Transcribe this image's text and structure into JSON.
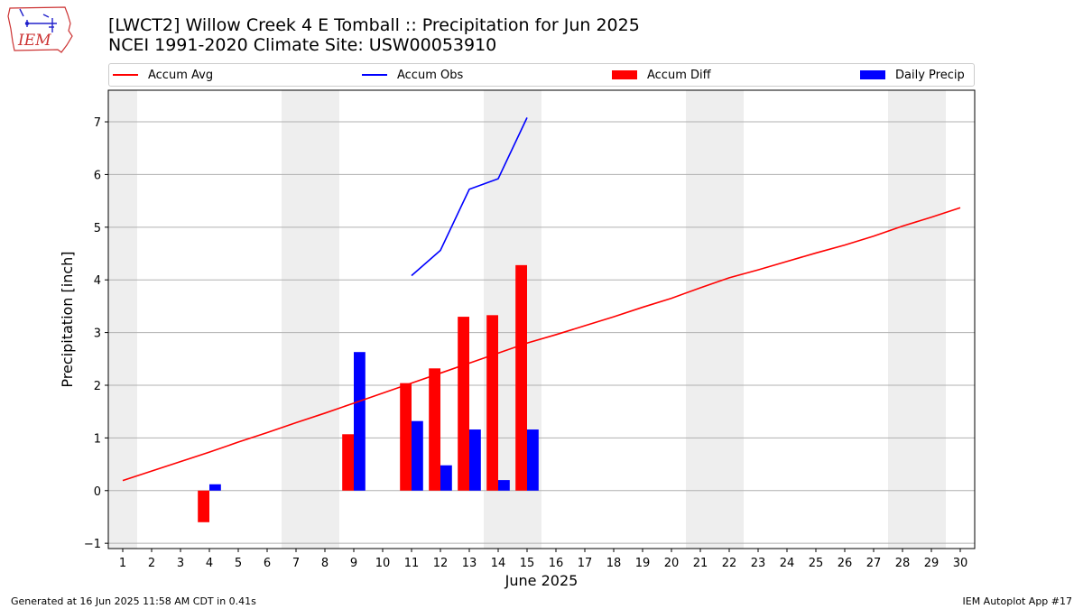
{
  "header": {
    "title_line1": "[LWCT2] Willow Creek 4 E Tomball :: Precipitation for Jun 2025",
    "title_line2": "NCEI 1991-2020 Climate Site: USW00053910",
    "logo_text": "IEM"
  },
  "footer": {
    "generated": "Generated at 16 Jun 2025 11:58 AM CDT in 0.41s",
    "app": "IEM Autoplot App #17"
  },
  "legend": {
    "accum_avg": "Accum Avg",
    "accum_obs": "Accum Obs",
    "accum_diff": "Accum Diff",
    "daily_precip": "Daily Precip"
  },
  "colors": {
    "accum_avg": "#ff0000",
    "accum_obs": "#0000ff",
    "accum_diff": "#ff0000",
    "daily_precip": "#0000ff",
    "weekend_shade": "#eeeeee",
    "grid": "#b0b0b0"
  },
  "chart_data": {
    "type": "bar+line",
    "xlabel": "June 2025",
    "ylabel": "Precipitation [inch]",
    "x": [
      1,
      2,
      3,
      4,
      5,
      6,
      7,
      8,
      9,
      10,
      11,
      12,
      13,
      14,
      15,
      16,
      17,
      18,
      19,
      20,
      21,
      22,
      23,
      24,
      25,
      26,
      27,
      28,
      29,
      30
    ],
    "xlim": [
      0.5,
      30.5
    ],
    "ylim": [
      -1.1,
      7.6
    ],
    "yticks": [
      -1,
      0,
      1,
      2,
      3,
      4,
      5,
      6,
      7
    ],
    "grid": "horizontal",
    "weekend_shaded_days": [
      1,
      7,
      8,
      14,
      15,
      21,
      22,
      28,
      29
    ],
    "series": [
      {
        "name": "Accum Avg",
        "kind": "line",
        "x": [
          1,
          2,
          3,
          4,
          5,
          6,
          7,
          8,
          9,
          10,
          11,
          12,
          13,
          14,
          15,
          16,
          17,
          18,
          19,
          20,
          21,
          22,
          23,
          24,
          25,
          26,
          27,
          28,
          29,
          30
        ],
        "values": [
          0.19,
          0.37,
          0.55,
          0.73,
          0.92,
          1.1,
          1.29,
          1.47,
          1.66,
          1.85,
          2.04,
          2.23,
          2.42,
          2.61,
          2.8,
          2.96,
          3.13,
          3.3,
          3.48,
          3.65,
          3.85,
          4.04,
          4.19,
          4.35,
          4.51,
          4.66,
          4.83,
          5.02,
          5.19,
          5.37
        ]
      },
      {
        "name": "Accum Obs",
        "kind": "line",
        "x": [
          11,
          12,
          13,
          14,
          15
        ],
        "values": [
          4.08,
          4.56,
          5.72,
          5.92,
          7.08
        ]
      },
      {
        "name": "Accum Diff",
        "kind": "bar",
        "x": [
          4,
          9,
          11,
          12,
          13,
          14,
          15
        ],
        "values": [
          -0.6,
          1.07,
          2.04,
          2.32,
          3.3,
          3.33,
          4.28
        ]
      },
      {
        "name": "Daily Precip",
        "kind": "bar",
        "x": [
          4,
          9,
          11,
          12,
          13,
          14,
          15
        ],
        "values": [
          0.12,
          2.63,
          1.32,
          0.48,
          1.16,
          0.2,
          1.16
        ]
      }
    ]
  }
}
